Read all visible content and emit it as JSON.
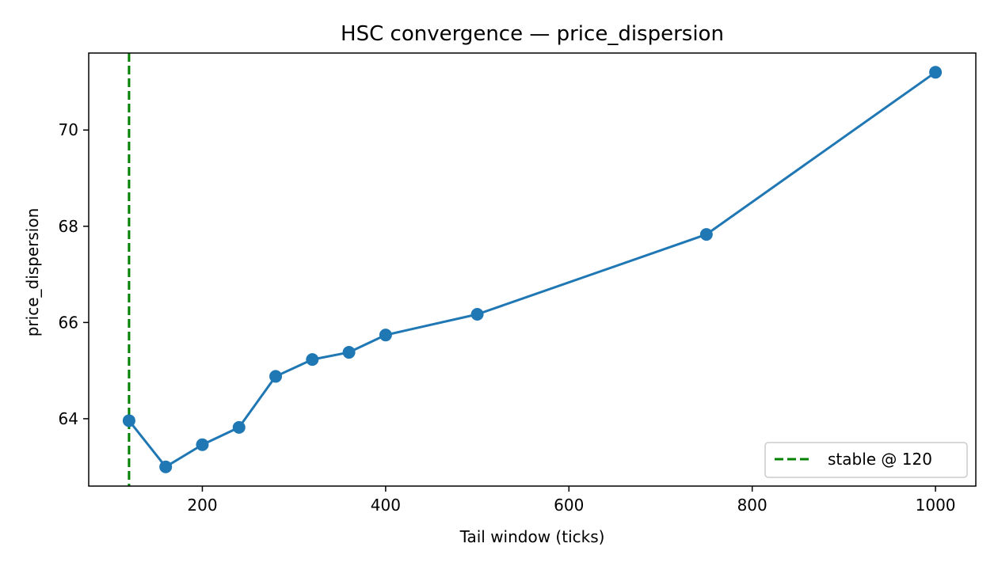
{
  "chart_data": {
    "type": "line",
    "title": "HSC convergence — price_dispersion",
    "xlabel": "Tail window (ticks)",
    "ylabel": "price_dispersion",
    "xlim": [
      76,
      1044
    ],
    "ylim": [
      62.6,
      71.6
    ],
    "xticks": [
      200,
      400,
      600,
      800,
      1000
    ],
    "yticks": [
      64,
      66,
      68,
      70
    ],
    "grid": false,
    "legend_location": "lower-right",
    "series": [
      {
        "color": "#1f77b4",
        "marker": "circle",
        "x": [
          120,
          160,
          200,
          240,
          280,
          320,
          360,
          400,
          500,
          750,
          1000
        ],
        "y": [
          63.96,
          63.0,
          63.46,
          63.82,
          64.88,
          65.23,
          65.38,
          65.74,
          66.17,
          67.83,
          71.2
        ]
      }
    ],
    "reference_lines": [
      {
        "orientation": "vertical",
        "x": 120,
        "label": "stable @ 120",
        "color": "#008000",
        "style": "dashed"
      }
    ]
  }
}
